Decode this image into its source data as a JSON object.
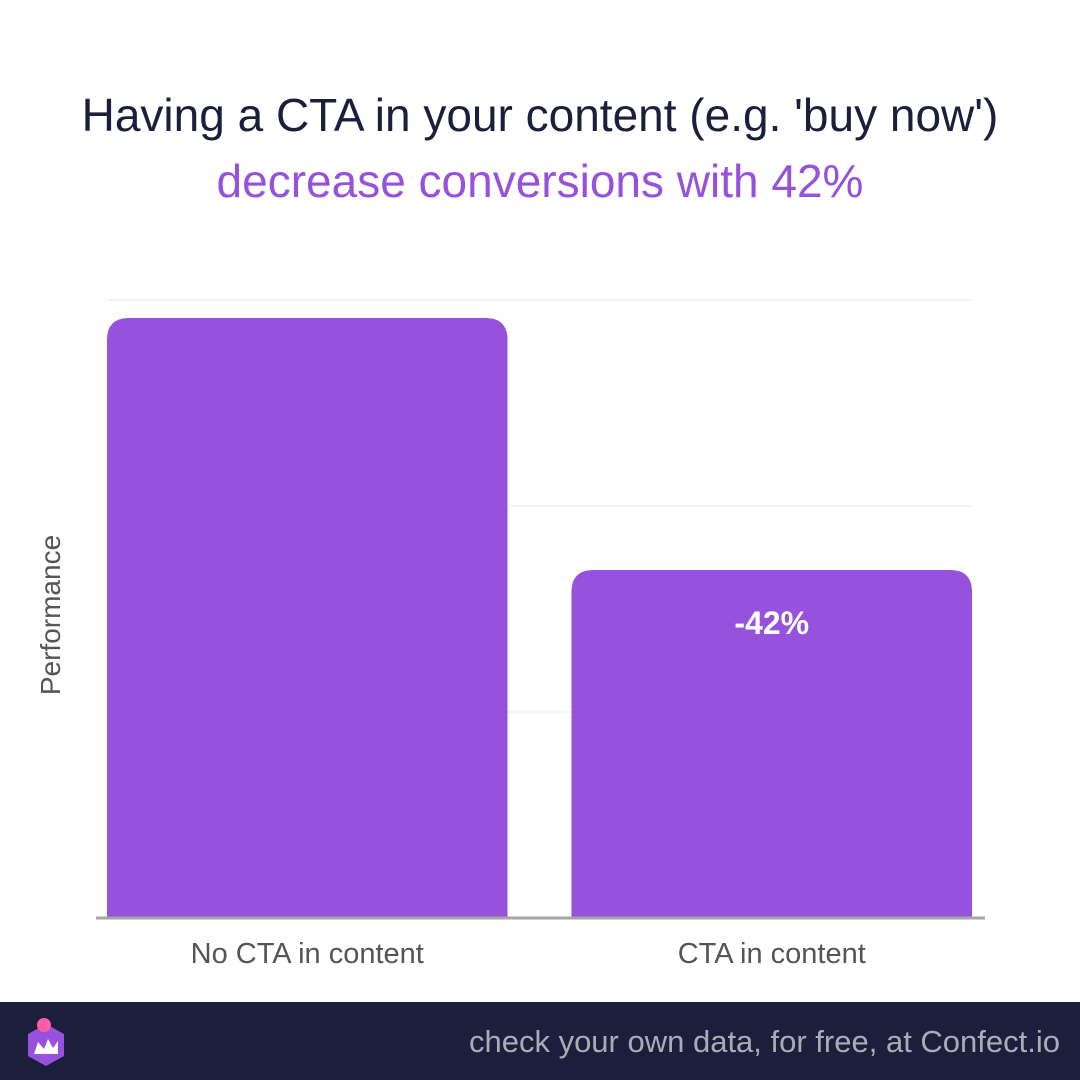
{
  "header": {
    "title_line1": "Having a CTA in your content (e.g. 'buy now')",
    "title_line2": "decrease conversions with 42%"
  },
  "chart_data": {
    "type": "bar",
    "categories": [
      "No CTA in content",
      "CTA in content"
    ],
    "values": [
      100,
      58
    ],
    "data_labels": [
      "",
      "-42%"
    ],
    "ylabel": "Performance",
    "xlabel": "",
    "ylim": [
      0,
      103
    ],
    "grid": true,
    "legend": "none",
    "bar_color": "#9652dc",
    "grid_color": "#e8e8ec",
    "axis_color": "#a6a6a6"
  },
  "footer": {
    "text": "check your own data, for free, at Confect.io",
    "logo_icon": "confect-crown-logo"
  },
  "colors": {
    "accent": "#9652dc",
    "dark": "#1c1f3b"
  }
}
